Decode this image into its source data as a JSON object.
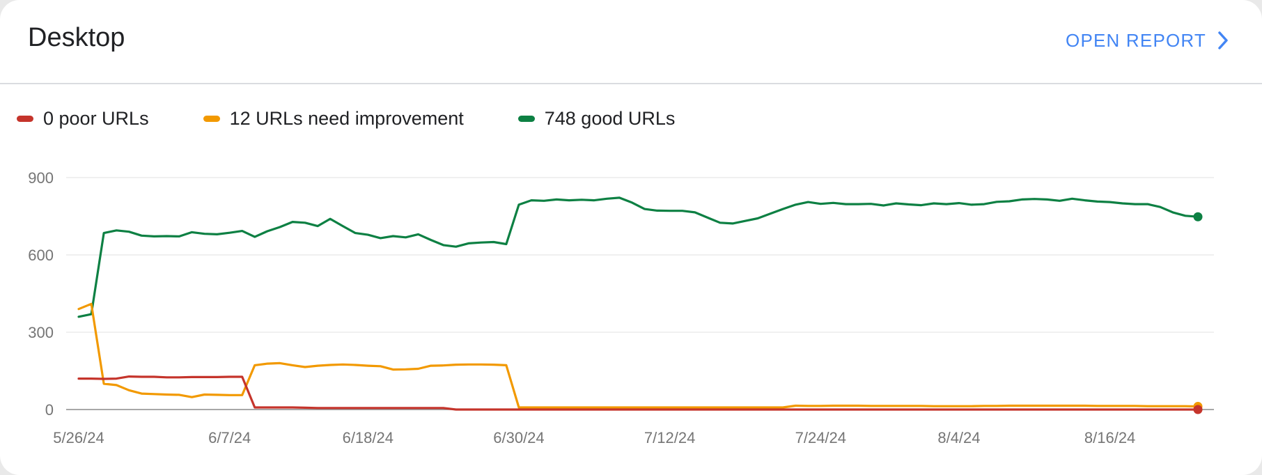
{
  "header": {
    "title": "Desktop",
    "open_report_label": "OPEN REPORT"
  },
  "colors": {
    "poor": "#c5342b",
    "needs_improvement": "#f29900",
    "good": "#0d8043",
    "accent": "#4285f4"
  },
  "chart_data": {
    "type": "line",
    "title": "",
    "xlabel": "",
    "ylabel": "",
    "ylim": [
      0,
      900
    ],
    "y_ticks": [
      0,
      300,
      600,
      900
    ],
    "x_ticks": [
      {
        "label": "5/26/24",
        "day": 0
      },
      {
        "label": "6/7/24",
        "day": 12
      },
      {
        "label": "6/18/24",
        "day": 23
      },
      {
        "label": "6/30/24",
        "day": 35
      },
      {
        "label": "7/12/24",
        "day": 47
      },
      {
        "label": "7/24/24",
        "day": 59
      },
      {
        "label": "8/4/24",
        "day": 70
      },
      {
        "label": "8/16/24",
        "day": 82
      }
    ],
    "x_end_day": 89,
    "grid": true,
    "legend_position": "top-left",
    "series": [
      {
        "key": "poor",
        "name": "0 poor URLs",
        "values": [
          120,
          120,
          119,
          120,
          128,
          127,
          127,
          125,
          125,
          126,
          126,
          126,
          127,
          127,
          8,
          8,
          8,
          8,
          7,
          6,
          6,
          6,
          6,
          6,
          6,
          6,
          6,
          6,
          6,
          6,
          0,
          0,
          0,
          0,
          0,
          0,
          0,
          0,
          0,
          0,
          0,
          0,
          0,
          0,
          0,
          0,
          0,
          0,
          0,
          0,
          0,
          0,
          0,
          0,
          0,
          0,
          0,
          0,
          0,
          0,
          0,
          0,
          0,
          0,
          0,
          0,
          0,
          0,
          0,
          0,
          0,
          0,
          0,
          0,
          0,
          0,
          0,
          0,
          0,
          0,
          0,
          0,
          0,
          0,
          0,
          0,
          0,
          0,
          0,
          0
        ]
      },
      {
        "key": "needs_improvement",
        "name": "12 URLs need improvement",
        "values": [
          390,
          410,
          100,
          95,
          75,
          62,
          60,
          58,
          57,
          48,
          58,
          57,
          56,
          56,
          172,
          178,
          180,
          172,
          165,
          170,
          173,
          175,
          173,
          170,
          168,
          155,
          156,
          158,
          170,
          171,
          174,
          175,
          175,
          174,
          172,
          8,
          8,
          8,
          8,
          8,
          8,
          8,
          8,
          8,
          8,
          8,
          8,
          8,
          8,
          8,
          8,
          8,
          8,
          8,
          8,
          8,
          8,
          15,
          14,
          14,
          15,
          15,
          15,
          14,
          14,
          14,
          14,
          14,
          13,
          13,
          13,
          13,
          14,
          14,
          15,
          15,
          15,
          15,
          15,
          15,
          15,
          14,
          14,
          14,
          14,
          13,
          13,
          13,
          13,
          12
        ]
      },
      {
        "key": "good",
        "name": "748 good URLs",
        "values": [
          360,
          370,
          685,
          695,
          690,
          675,
          672,
          673,
          672,
          688,
          682,
          680,
          686,
          693,
          670,
          692,
          708,
          728,
          725,
          712,
          740,
          712,
          685,
          678,
          665,
          673,
          668,
          680,
          658,
          638,
          632,
          645,
          648,
          650,
          642,
          795,
          812,
          810,
          815,
          812,
          814,
          812,
          818,
          822,
          803,
          778,
          772,
          771,
          771,
          765,
          745,
          725,
          722,
          732,
          742,
          760,
          778,
          795,
          805,
          798,
          802,
          797,
          797,
          798,
          792,
          800,
          796,
          793,
          800,
          797,
          801,
          795,
          797,
          806,
          808,
          815,
          817,
          815,
          810,
          818,
          812,
          807,
          805,
          800,
          797,
          797,
          786,
          765,
          752,
          748
        ]
      }
    ]
  }
}
